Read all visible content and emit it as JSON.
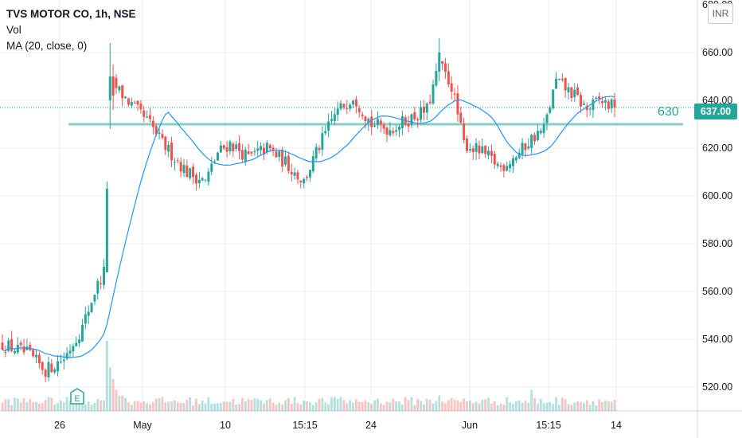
{
  "legend": {
    "title": "TVS MOTOR CO, 1h, NSE",
    "volume": "Vol",
    "ma": "MA (20, close, 0)"
  },
  "currency": "INR",
  "last_price_label": "637.00",
  "level_label": "630",
  "event_marker": "E",
  "colors": {
    "up": "#26a69a",
    "down": "#ef5350",
    "ma": "#2196f3",
    "level": "#26a69a",
    "grid": "#e9ecf1"
  },
  "chart_data": {
    "type": "candlestick",
    "y_axis": {
      "ticks": [
        520,
        540,
        560,
        580,
        600,
        620,
        640,
        660
      ],
      "tick_labels": [
        "520.00",
        "540.00",
        "560.00",
        "580.00",
        "600.00",
        "620.00",
        "640.00",
        "660.00"
      ],
      "range": [
        510,
        682
      ]
    },
    "x_axis": {
      "tick_labels": [
        "26",
        "May",
        "10",
        "15:15",
        "24",
        "Jun",
        "15:15",
        "14"
      ],
      "bar_count": 200
    },
    "horizontal_level": 630,
    "last_price": 637,
    "anchors": [
      [
        0,
        538
      ],
      [
        8,
        534
      ],
      [
        14,
        527
      ],
      [
        20,
        532
      ],
      [
        26,
        545
      ],
      [
        30,
        560
      ],
      [
        33,
        568
      ],
      [
        34,
        601
      ],
      [
        35,
        648
      ],
      [
        42,
        638
      ],
      [
        48,
        630
      ],
      [
        52,
        622
      ],
      [
        60,
        610
      ],
      [
        66,
        606
      ],
      [
        70,
        618
      ],
      [
        74,
        622
      ],
      [
        80,
        616
      ],
      [
        86,
        620
      ],
      [
        92,
        614
      ],
      [
        98,
        606
      ],
      [
        102,
        618
      ],
      [
        108,
        634
      ],
      [
        114,
        642
      ],
      [
        120,
        630
      ],
      [
        126,
        628
      ],
      [
        132,
        632
      ],
      [
        138,
        636
      ],
      [
        142,
        655
      ],
      [
        146,
        646
      ],
      [
        150,
        622
      ],
      [
        156,
        618
      ],
      [
        162,
        612
      ],
      [
        168,
        618
      ],
      [
        172,
        624
      ],
      [
        176,
        628
      ],
      [
        180,
        648
      ],
      [
        186,
        642
      ],
      [
        190,
        636
      ],
      [
        194,
        640
      ],
      [
        199,
        637
      ]
    ],
    "volume_scale": {
      "baseline_pct": 0,
      "max_spike_bar": 34
    }
  }
}
